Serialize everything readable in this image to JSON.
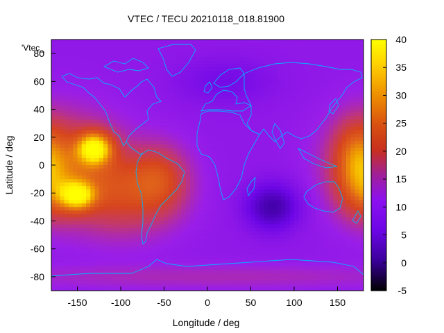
{
  "chart_data": {
    "type": "heatmap",
    "title": "VTEC / TECU 20210118_018.81900",
    "series_label": "'Vtec_",
    "xlabel": "Longitude / deg",
    "ylabel": "Latitude / deg",
    "xlim": [
      -180,
      180
    ],
    "ylim": [
      -90,
      90
    ],
    "xticks": [
      -150,
      -100,
      -50,
      0,
      50,
      100,
      150
    ],
    "yticks": [
      -80,
      -60,
      -40,
      -20,
      0,
      20,
      40,
      60,
      80
    ],
    "colorbar": {
      "range": [
        -5,
        40
      ],
      "ticks": [
        -5,
        0,
        5,
        10,
        15,
        20,
        25,
        30,
        35,
        40
      ],
      "palette": [
        "#000000",
        "#3a009a",
        "#6c06e6",
        "#9a1ee8",
        "#c2386e",
        "#d6441e",
        "#e0641a",
        "#f0a000",
        "#ffe800",
        "#ffff00"
      ]
    },
    "background_level": 9,
    "features": [
      {
        "name": "Pacific equatorial anomaly",
        "lon": -130,
        "lat": 12,
        "peak": 36
      },
      {
        "name": "South Pacific anomaly",
        "lon": -150,
        "lat": -22,
        "peak": 32
      },
      {
        "name": "South America / Atlantic band",
        "lon": -60,
        "lat": -10,
        "peak": 20
      },
      {
        "name": "Western Pacific / Australia",
        "lon": 170,
        "lat": 5,
        "peak": 24
      },
      {
        "name": "Indian Ocean minimum",
        "lon": 75,
        "lat": -30,
        "peak": 1
      }
    ]
  },
  "coastline_color": "#00b4ff"
}
